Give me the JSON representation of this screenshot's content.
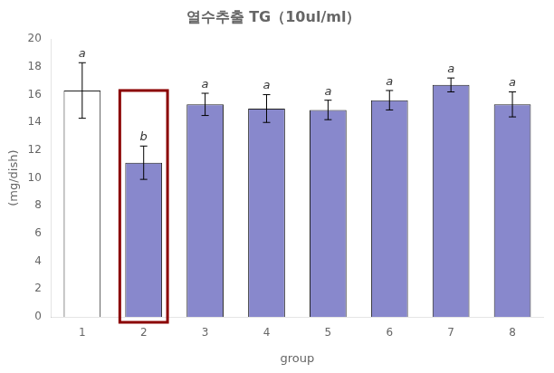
{
  "chart_data": {
    "type": "bar",
    "title": "열수추출 TG（10ul/ml）",
    "xlabel": "group",
    "ylabel": "(mg/dish)",
    "categories": [
      "1",
      "2",
      "3",
      "4",
      "5",
      "6",
      "7",
      "8"
    ],
    "values": [
      16.3,
      11.1,
      15.3,
      15.0,
      14.9,
      15.6,
      16.7,
      15.3
    ],
    "errors": [
      2.0,
      1.2,
      0.8,
      1.0,
      0.7,
      0.7,
      0.5,
      0.9
    ],
    "annotations": [
      "a",
      "b",
      "a",
      "a",
      "a",
      "a",
      "a",
      "a"
    ],
    "colors": [
      "#ffffff",
      "#8888cc",
      "#8888cc",
      "#8888cc",
      "#8888cc",
      "#8888cc",
      "#8888cc",
      "#8888cc"
    ],
    "edge_color": "#222222",
    "highlight": {
      "category": "2",
      "top": 16.3,
      "color": "#8B0000"
    },
    "ylim": [
      0,
      20
    ],
    "yticks": [
      0,
      2,
      4,
      6,
      8,
      10,
      12,
      14,
      16,
      18,
      20
    ],
    "grid": false,
    "legend": false
  }
}
